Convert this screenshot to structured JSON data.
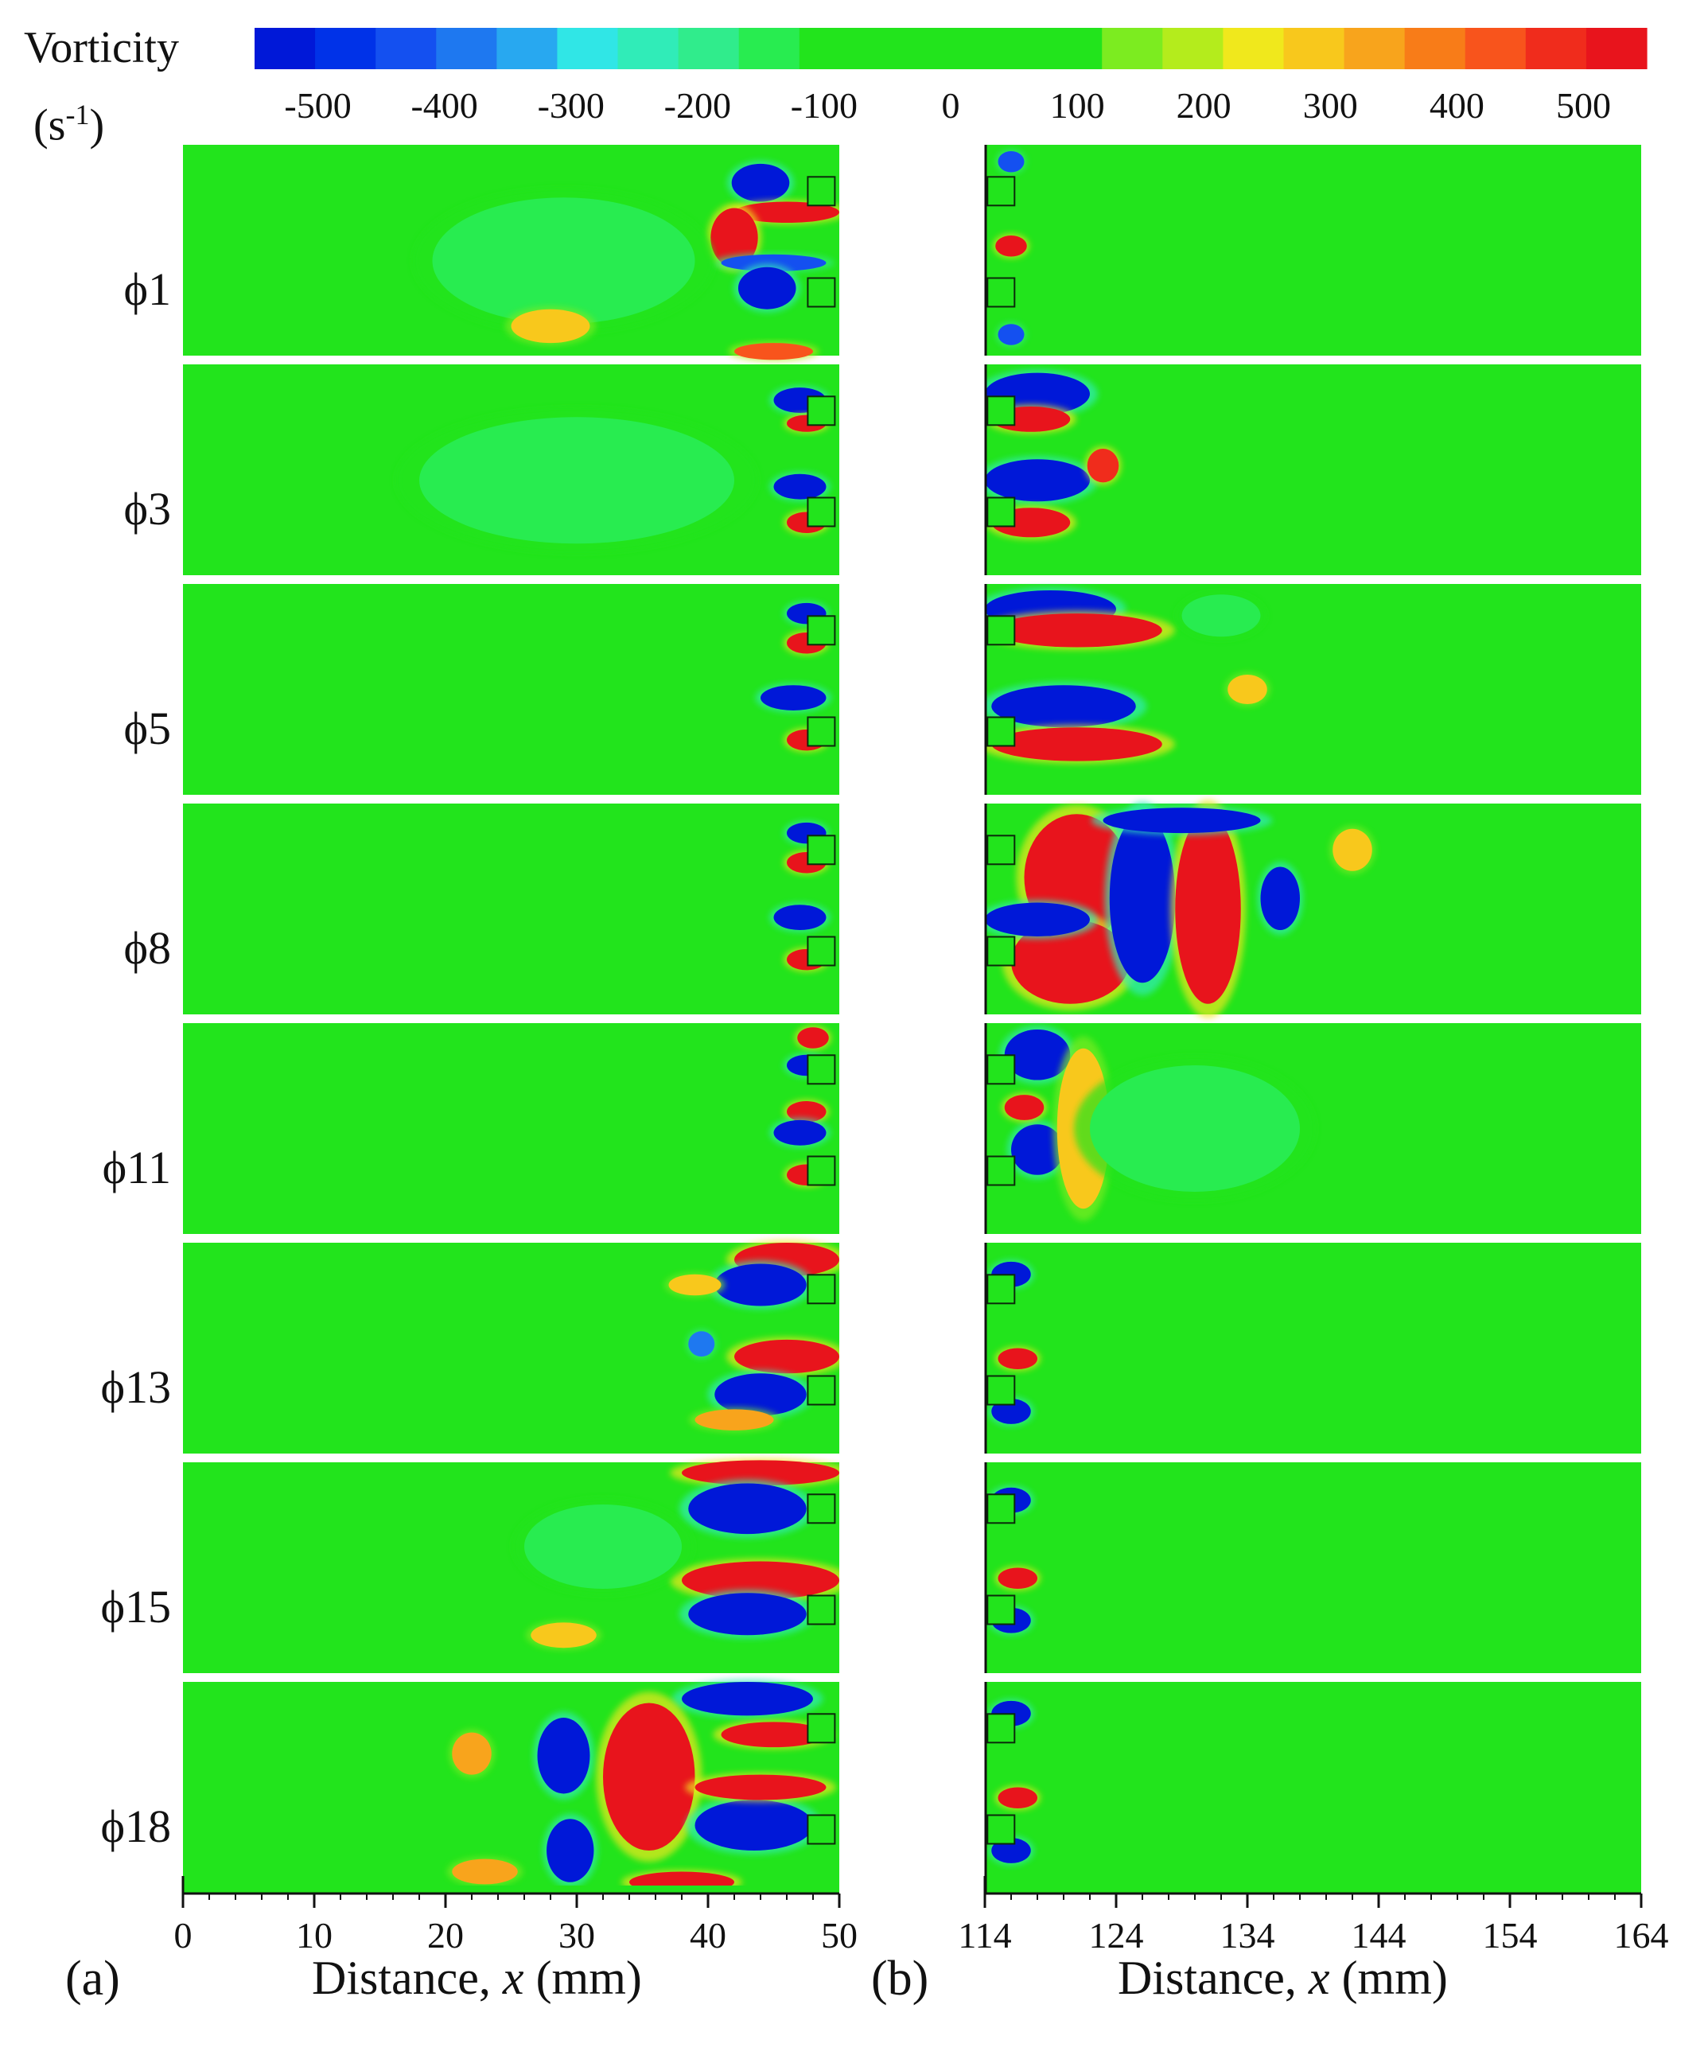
{
  "colorbar": {
    "title": "Vorticity",
    "unit_base": "(s",
    "unit_sup": "-1",
    "unit_close": ")",
    "ticks": [
      "-500",
      "-400",
      "-300",
      "-200",
      "-100",
      "0",
      "100",
      "200",
      "300",
      "400",
      "500"
    ],
    "colors": [
      "#0018d8",
      "#0032e8",
      "#1450f0",
      "#1e78f0",
      "#28a8f0",
      "#30e6e6",
      "#30ecb8",
      "#30ec8c",
      "#28ec50",
      "#22e41c",
      "#22e41c",
      "#22e41c",
      "#22e41c",
      "#22e41c",
      "#7cec20",
      "#b4ec1c",
      "#f0e81c",
      "#f8c81c",
      "#f8a41c",
      "#f87c18",
      "#f8541c",
      "#f02c1c",
      "#e8141c"
    ]
  },
  "chart_data": {
    "type": "heatmap",
    "value_range": [
      -500,
      500
    ],
    "rows": [
      "ϕ1",
      "ϕ3",
      "ϕ5",
      "ϕ8",
      "ϕ11",
      "ϕ13",
      "ϕ15",
      "ϕ18"
    ],
    "panels": [
      {
        "letter": "(a)",
        "xlabel_prefix": "Distance, ",
        "xlabel_var": "x",
        "xlabel_suffix": " (mm)",
        "xlim": [
          0,
          50
        ],
        "ticks": [
          "0",
          "10",
          "20",
          "30",
          "40",
          "50"
        ],
        "tick_values": [
          0,
          10,
          20,
          30,
          40,
          50
        ],
        "minor_step": 2
      },
      {
        "letter": "(b)",
        "xlabel_prefix": "Distance, ",
        "xlabel_var": "x",
        "xlabel_suffix": " (mm)",
        "xlim": [
          114,
          164
        ],
        "ticks": [
          "114",
          "124",
          "134",
          "144",
          "154",
          "164"
        ],
        "tick_values": [
          114,
          124,
          134,
          144,
          154,
          164
        ],
        "minor_step": 2
      }
    ],
    "blobs": [
      [
        [
          {
            "x": 44,
            "y": 0.82,
            "rx": 2.2,
            "ry": 0.09,
            "v": -500
          },
          {
            "x": 46,
            "y": 0.68,
            "rx": 4,
            "ry": 0.05,
            "v": 500
          },
          {
            "x": 42,
            "y": 0.56,
            "rx": 1.8,
            "ry": 0.14,
            "v": 500
          },
          {
            "x": 45,
            "y": 0.44,
            "rx": 4,
            "ry": 0.04,
            "v": -400
          },
          {
            "x": 44.5,
            "y": 0.32,
            "rx": 2.2,
            "ry": 0.1,
            "v": -500
          },
          {
            "x": 45,
            "y": 0.02,
            "rx": 3,
            "ry": 0.04,
            "v": 400
          },
          {
            "x": 29,
            "y": 0.45,
            "rx": 10,
            "ry": 0.3,
            "v": -150
          },
          {
            "x": 28,
            "y": 0.14,
            "rx": 3,
            "ry": 0.08,
            "v": 250
          }
        ],
        [
          {
            "x": 47,
            "y": 0.83,
            "rx": 2,
            "ry": 0.06,
            "v": -500
          },
          {
            "x": 47.5,
            "y": 0.72,
            "rx": 1.5,
            "ry": 0.04,
            "v": 500
          },
          {
            "x": 47,
            "y": 0.42,
            "rx": 2,
            "ry": 0.06,
            "v": -500
          },
          {
            "x": 47.5,
            "y": 0.25,
            "rx": 1.5,
            "ry": 0.05,
            "v": 500
          },
          {
            "x": 30,
            "y": 0.45,
            "rx": 12,
            "ry": 0.3,
            "v": -140
          }
        ],
        [
          {
            "x": 47.5,
            "y": 0.86,
            "rx": 1.5,
            "ry": 0.05,
            "v": -500
          },
          {
            "x": 47.5,
            "y": 0.72,
            "rx": 1.5,
            "ry": 0.05,
            "v": 500
          },
          {
            "x": 46.5,
            "y": 0.46,
            "rx": 2.5,
            "ry": 0.06,
            "v": -500
          },
          {
            "x": 47.5,
            "y": 0.26,
            "rx": 1.5,
            "ry": 0.05,
            "v": 500
          }
        ],
        [
          {
            "x": 47.5,
            "y": 0.86,
            "rx": 1.5,
            "ry": 0.05,
            "v": -500
          },
          {
            "x": 47.5,
            "y": 0.72,
            "rx": 1.5,
            "ry": 0.05,
            "v": 500
          },
          {
            "x": 47,
            "y": 0.46,
            "rx": 2,
            "ry": 0.06,
            "v": -500
          },
          {
            "x": 47.5,
            "y": 0.26,
            "rx": 1.5,
            "ry": 0.05,
            "v": 500
          }
        ],
        [
          {
            "x": 48,
            "y": 0.93,
            "rx": 1.2,
            "ry": 0.05,
            "v": 500
          },
          {
            "x": 47.5,
            "y": 0.8,
            "rx": 1.5,
            "ry": 0.05,
            "v": -500
          },
          {
            "x": 47.5,
            "y": 0.58,
            "rx": 1.5,
            "ry": 0.05,
            "v": 500
          },
          {
            "x": 47,
            "y": 0.48,
            "rx": 2,
            "ry": 0.06,
            "v": -500
          },
          {
            "x": 47.5,
            "y": 0.28,
            "rx": 1.5,
            "ry": 0.05,
            "v": 500
          }
        ],
        [
          {
            "x": 46,
            "y": 0.92,
            "rx": 4,
            "ry": 0.08,
            "v": 500
          },
          {
            "x": 44,
            "y": 0.8,
            "rx": 3.5,
            "ry": 0.1,
            "v": -500
          },
          {
            "x": 46,
            "y": 0.46,
            "rx": 4,
            "ry": 0.08,
            "v": 500
          },
          {
            "x": 44,
            "y": 0.28,
            "rx": 3.5,
            "ry": 0.1,
            "v": -500
          },
          {
            "x": 42,
            "y": 0.16,
            "rx": 3,
            "ry": 0.05,
            "v": 300
          },
          {
            "x": 39.5,
            "y": 0.52,
            "rx": 1,
            "ry": 0.06,
            "v": -350
          },
          {
            "x": 39,
            "y": 0.8,
            "rx": 2,
            "ry": 0.05,
            "v": 250
          }
        ],
        [
          {
            "x": 44,
            "y": 0.95,
            "rx": 6,
            "ry": 0.06,
            "v": 500
          },
          {
            "x": 43,
            "y": 0.78,
            "rx": 4.5,
            "ry": 0.12,
            "v": -500
          },
          {
            "x": 44,
            "y": 0.44,
            "rx": 6,
            "ry": 0.09,
            "v": 500
          },
          {
            "x": 43,
            "y": 0.28,
            "rx": 4.5,
            "ry": 0.1,
            "v": -500
          },
          {
            "x": 32,
            "y": 0.6,
            "rx": 6,
            "ry": 0.2,
            "v": -150
          },
          {
            "x": 29,
            "y": 0.18,
            "rx": 2.5,
            "ry": 0.06,
            "v": 250
          }
        ],
        [
          {
            "x": 43,
            "y": 0.92,
            "rx": 5,
            "ry": 0.08,
            "v": -500
          },
          {
            "x": 45,
            "y": 0.75,
            "rx": 4,
            "ry": 0.06,
            "v": 500
          },
          {
            "x": 35.5,
            "y": 0.55,
            "rx": 3.5,
            "ry": 0.35,
            "v": 500
          },
          {
            "x": 43.5,
            "y": 0.32,
            "rx": 4.5,
            "ry": 0.12,
            "v": -500
          },
          {
            "x": 44,
            "y": 0.5,
            "rx": 5,
            "ry": 0.06,
            "v": 500
          },
          {
            "x": 29,
            "y": 0.65,
            "rx": 2,
            "ry": 0.18,
            "v": -500
          },
          {
            "x": 29.5,
            "y": 0.2,
            "rx": 1.8,
            "ry": 0.15,
            "v": -500
          },
          {
            "x": 38,
            "y": 0.05,
            "rx": 4,
            "ry": 0.05,
            "v": 500
          },
          {
            "x": 22,
            "y": 0.66,
            "rx": 1.5,
            "ry": 0.1,
            "v": 300
          },
          {
            "x": 23,
            "y": 0.1,
            "rx": 2.5,
            "ry": 0.06,
            "v": 300
          }
        ]
      ],
      [
        [
          {
            "x": 116,
            "y": 0.52,
            "rx": 1.2,
            "ry": 0.05,
            "v": 500
          },
          {
            "x": 116,
            "y": 0.92,
            "rx": 1,
            "ry": 0.05,
            "v": -400
          },
          {
            "x": 116,
            "y": 0.1,
            "rx": 1,
            "ry": 0.05,
            "v": -400
          }
        ],
        [
          {
            "x": 118,
            "y": 0.86,
            "rx": 4,
            "ry": 0.1,
            "v": -500
          },
          {
            "x": 117.5,
            "y": 0.74,
            "rx": 3,
            "ry": 0.06,
            "v": 500
          },
          {
            "x": 118,
            "y": 0.45,
            "rx": 4,
            "ry": 0.1,
            "v": -500
          },
          {
            "x": 117.5,
            "y": 0.25,
            "rx": 3,
            "ry": 0.07,
            "v": 500
          },
          {
            "x": 123,
            "y": 0.52,
            "rx": 1.2,
            "ry": 0.08,
            "v": 450
          }
        ],
        [
          {
            "x": 119,
            "y": 0.88,
            "rx": 5,
            "ry": 0.09,
            "v": -500
          },
          {
            "x": 121,
            "y": 0.78,
            "rx": 6.5,
            "ry": 0.08,
            "v": 500
          },
          {
            "x": 120,
            "y": 0.42,
            "rx": 5.5,
            "ry": 0.1,
            "v": -500
          },
          {
            "x": 121,
            "y": 0.24,
            "rx": 6.5,
            "ry": 0.08,
            "v": 500
          },
          {
            "x": 134,
            "y": 0.5,
            "rx": 1.5,
            "ry": 0.07,
            "v": 280
          },
          {
            "x": 132,
            "y": 0.85,
            "rx": 3,
            "ry": 0.1,
            "v": -150
          }
        ],
        [
          {
            "x": 121,
            "y": 0.65,
            "rx": 4,
            "ry": 0.3,
            "v": 500
          },
          {
            "x": 120.5,
            "y": 0.25,
            "rx": 4.5,
            "ry": 0.2,
            "v": 500
          },
          {
            "x": 126,
            "y": 0.55,
            "rx": 2.5,
            "ry": 0.4,
            "v": -500
          },
          {
            "x": 118,
            "y": 0.45,
            "rx": 4,
            "ry": 0.08,
            "v": -500
          },
          {
            "x": 131,
            "y": 0.5,
            "rx": 2.5,
            "ry": 0.45,
            "v": 500
          },
          {
            "x": 136.5,
            "y": 0.55,
            "rx": 1.5,
            "ry": 0.15,
            "v": -500
          },
          {
            "x": 142,
            "y": 0.78,
            "rx": 1.5,
            "ry": 0.1,
            "v": 250
          },
          {
            "x": 129,
            "y": 0.92,
            "rx": 6,
            "ry": 0.06,
            "v": -500
          }
        ],
        [
          {
            "x": 118,
            "y": 0.85,
            "rx": 2.5,
            "ry": 0.12,
            "v": -500
          },
          {
            "x": 118,
            "y": 0.4,
            "rx": 2,
            "ry": 0.12,
            "v": -500
          },
          {
            "x": 117,
            "y": 0.6,
            "rx": 1.5,
            "ry": 0.06,
            "v": 500
          },
          {
            "x": 121.5,
            "y": 0.5,
            "rx": 2,
            "ry": 0.38,
            "v": 280
          },
          {
            "x": 130,
            "y": 0.5,
            "rx": 8,
            "ry": 0.3,
            "v": -130
          }
        ],
        [
          {
            "x": 116,
            "y": 0.85,
            "rx": 1.5,
            "ry": 0.06,
            "v": -500
          },
          {
            "x": 116.5,
            "y": 0.45,
            "rx": 1.5,
            "ry": 0.05,
            "v": 500
          },
          {
            "x": 116,
            "y": 0.2,
            "rx": 1.5,
            "ry": 0.06,
            "v": -500
          }
        ],
        [
          {
            "x": 116,
            "y": 0.82,
            "rx": 1.5,
            "ry": 0.06,
            "v": -500
          },
          {
            "x": 116.5,
            "y": 0.45,
            "rx": 1.5,
            "ry": 0.05,
            "v": 500
          },
          {
            "x": 116,
            "y": 0.25,
            "rx": 1.5,
            "ry": 0.06,
            "v": -500
          }
        ],
        [
          {
            "x": 116,
            "y": 0.85,
            "rx": 1.5,
            "ry": 0.06,
            "v": -500
          },
          {
            "x": 116.5,
            "y": 0.45,
            "rx": 1.5,
            "ry": 0.05,
            "v": 500
          },
          {
            "x": 116,
            "y": 0.2,
            "rx": 1.5,
            "ry": 0.06,
            "v": -500
          }
        ]
      ]
    ]
  }
}
